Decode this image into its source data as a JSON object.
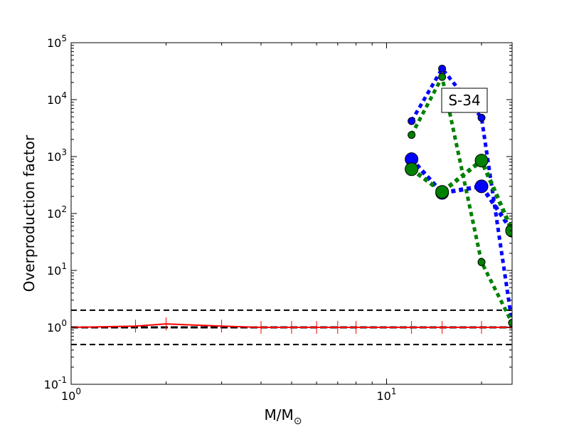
{
  "chart_data": {
    "type": "line",
    "title": "",
    "xlabel": "M/M",
    "xlabel_sub": "⊙",
    "ylabel": "Overproduction factor",
    "xscale": "log",
    "yscale": "log",
    "xlim": [
      1,
      25
    ],
    "ylim": [
      0.1,
      100000
    ],
    "x_ticks": [
      {
        "value": 1,
        "base": "10",
        "exp": "0"
      },
      {
        "value": 10,
        "base": "10",
        "exp": "1"
      }
    ],
    "y_ticks": [
      {
        "value": 0.1,
        "base": "10",
        "exp": "-1"
      },
      {
        "value": 1,
        "base": "10",
        "exp": "0"
      },
      {
        "value": 10,
        "base": "10",
        "exp": "1"
      },
      {
        "value": 100,
        "base": "10",
        "exp": "2"
      },
      {
        "value": 1000,
        "base": "10",
        "exp": "3"
      },
      {
        "value": 10000,
        "base": "10",
        "exp": "4"
      },
      {
        "value": 100000,
        "base": "10",
        "exp": "5"
      }
    ],
    "grid": false,
    "annotation": "S-34",
    "reference_lines": [
      {
        "y": 2,
        "style": "dashed",
        "color": "#000000"
      },
      {
        "y": 1,
        "style": "dashed-bold",
        "color": "#000000"
      },
      {
        "y": 0.5,
        "style": "dashed",
        "color": "#000000"
      }
    ],
    "series": [
      {
        "color": "#0000ff",
        "style": "dotted",
        "marker": "small",
        "points": [
          [
            12,
            4200
          ],
          [
            15,
            35000
          ],
          [
            20,
            4800
          ],
          [
            25,
            1.2
          ]
        ]
      },
      {
        "color": "#008000",
        "style": "dotted",
        "marker": "small",
        "points": [
          [
            12,
            2400
          ],
          [
            15,
            25000
          ],
          [
            20,
            14
          ],
          [
            25,
            1.2
          ]
        ]
      },
      {
        "color": "#0000ff",
        "style": "dotted",
        "marker": "large",
        "points": [
          [
            12,
            900
          ],
          [
            15,
            230
          ],
          [
            20,
            300
          ],
          [
            25,
            50
          ]
        ]
      },
      {
        "color": "#008000",
        "style": "dotted",
        "marker": "large",
        "points": [
          [
            12,
            600
          ],
          [
            15,
            240
          ],
          [
            20,
            850
          ],
          [
            25,
            50
          ]
        ]
      },
      {
        "color": "#ff0000",
        "style": "solid",
        "marker": "errorbar",
        "points": [
          [
            1,
            1.0
          ],
          [
            1.6,
            1.05
          ],
          [
            2,
            1.15
          ],
          [
            3,
            1.05
          ],
          [
            4,
            1.0
          ],
          [
            5,
            1.0
          ],
          [
            6,
            1.0
          ],
          [
            7,
            1.0
          ],
          [
            8,
            1.0
          ],
          [
            12,
            1.0
          ],
          [
            15,
            1.0
          ],
          [
            20,
            1.0
          ],
          [
            25,
            1.0
          ]
        ]
      }
    ],
    "colors": {
      "axes": "#000000",
      "annotation_border": "#000000"
    }
  }
}
